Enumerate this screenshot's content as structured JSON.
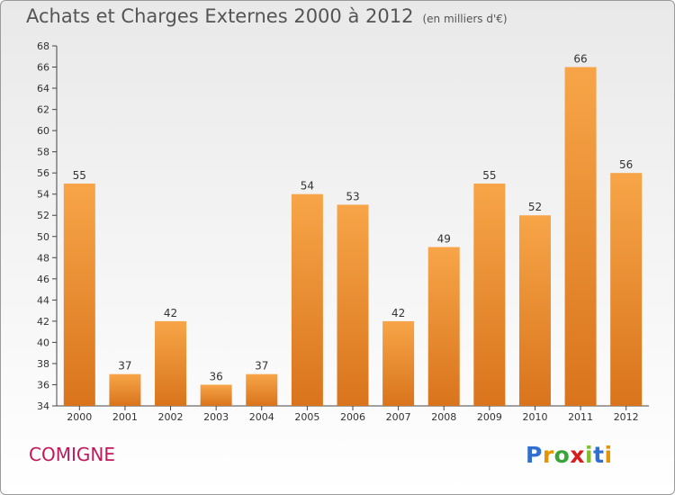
{
  "header": {
    "title": "Achats et Charges Externes 2000 à 2012",
    "subtitle": "(en milliers d'€)"
  },
  "footer": {
    "commune": "COMIGNE",
    "logo_letters": [
      "P",
      "r",
      "o",
      "x",
      "i",
      "t",
      "i"
    ],
    "logo_colors": [
      "#2e6fd1",
      "#e69500",
      "#3aa33a",
      "#d81b1b",
      "#7fbf2a",
      "#2e6fd1",
      "#e69500"
    ]
  },
  "chart_data": {
    "type": "bar",
    "title": "Achats et Charges Externes 2000 à 2012",
    "subtitle": "(en milliers d'€)",
    "categories": [
      "2000",
      "2001",
      "2002",
      "2003",
      "2004",
      "2005",
      "2006",
      "2007",
      "2008",
      "2009",
      "2010",
      "2011",
      "2012"
    ],
    "values": [
      55,
      37,
      42,
      36,
      37,
      54,
      53,
      42,
      49,
      55,
      52,
      66,
      56
    ],
    "ylim": [
      34,
      68
    ],
    "ytick_step": 2,
    "grid": false,
    "bar_color": "#f29a3e"
  }
}
